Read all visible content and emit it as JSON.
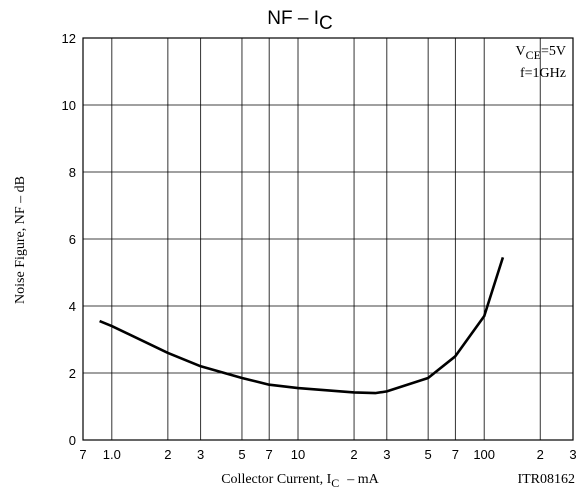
{
  "chart_data": {
    "type": "line",
    "title": "NF – I",
    "title_sub": "C",
    "xlabel": "Collector Current, I",
    "xlabel_sub": "C",
    "xlabel_unit": "– mA",
    "ylabel": "Noise Figure, NF – dB",
    "annotations": {
      "v": "V",
      "v_sub": "CE",
      "v_rest": "=5V",
      "f": "f=1GHz",
      "code": "ITR08162"
    },
    "xscale": "log",
    "grid": true,
    "xlim": [
      0.7,
      300
    ],
    "ylim": [
      0,
      12
    ],
    "xticks": [
      {
        "value": 0.7,
        "label": "7"
      },
      {
        "value": 1,
        "label": "1.0"
      },
      {
        "value": 2,
        "label": "2"
      },
      {
        "value": 3,
        "label": "3"
      },
      {
        "value": 5,
        "label": "5"
      },
      {
        "value": 7,
        "label": "7"
      },
      10,
      {
        "value": 20,
        "label": "2"
      },
      {
        "value": 30,
        "label": "3"
      },
      {
        "value": 50,
        "label": "5"
      },
      {
        "value": 70,
        "label": "7"
      },
      100,
      {
        "value": 200,
        "label": "2"
      },
      {
        "value": 300,
        "label": "3"
      }
    ],
    "yticks": [
      0,
      2,
      4,
      6,
      8,
      10,
      12
    ],
    "x": [
      0.86,
      1,
      2,
      3,
      5,
      7,
      10,
      20,
      26,
      30,
      50,
      70,
      100,
      126
    ],
    "series": [
      {
        "color": "#000000",
        "values": [
          3.55,
          3.4,
          2.6,
          2.2,
          1.85,
          1.65,
          1.55,
          1.42,
          1.4,
          1.45,
          1.85,
          2.5,
          3.7,
          5.45
        ]
      }
    ]
  }
}
